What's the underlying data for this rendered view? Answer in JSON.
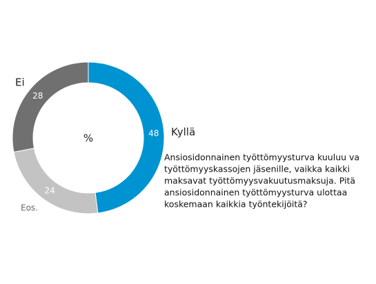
{
  "chart_data": {
    "type": "donut",
    "center_label": "%",
    "categories": [
      "Kyllä",
      "Eos.",
      "Ei"
    ],
    "values": [
      48,
      24,
      28
    ],
    "colors": [
      "#0093d1",
      "#c3c3c3",
      "#707070"
    ],
    "annotation": [
      "Ansiosidonnainen työttömyysturva kuuluu va",
      "työttömyyskassojen jäsenille, vaikka kaikki",
      "maksavat työttömyysvakuutusmaksuja. Pitä",
      "ansiosidonnainen työttömyysturva ulottaa",
      "koskemaan kaikkia työntekijöitä?"
    ]
  }
}
